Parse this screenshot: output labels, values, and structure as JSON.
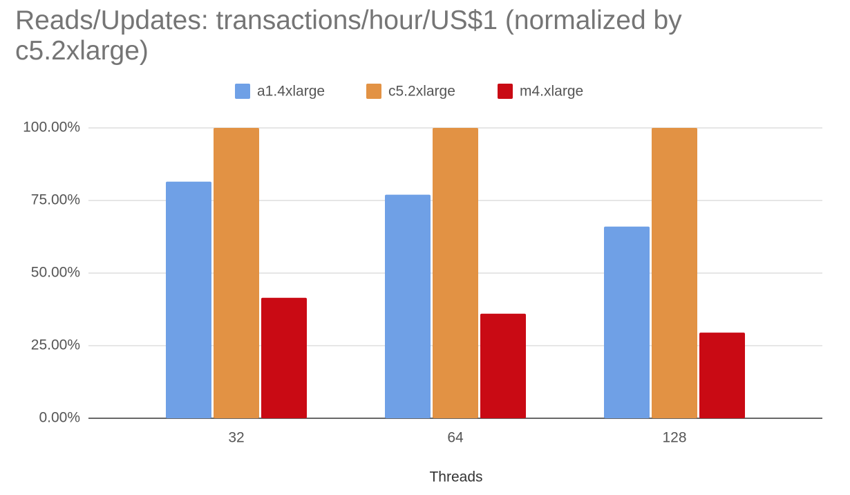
{
  "chart_data": {
    "type": "bar",
    "title": "Reads/Updates: transactions/hour/US$1 (normalized by c5.2xlarge)",
    "x_label": "Threads",
    "categories": [
      "32",
      "64",
      "128"
    ],
    "series": [
      {
        "name": "a1.4xlarge",
        "color": "#6fa0e6",
        "values": [
          81.5,
          77,
          66
        ]
      },
      {
        "name": "c5.2xlarge",
        "color": "#e29244",
        "values": [
          100,
          100,
          100
        ]
      },
      {
        "name": "m4.xlarge",
        "color": "#c90a14",
        "values": [
          41.5,
          36,
          29.5
        ]
      }
    ],
    "ylim": [
      0,
      100
    ],
    "yticks": [
      {
        "value": 0,
        "label": "0.00%"
      },
      {
        "value": 25,
        "label": "25.00%"
      },
      {
        "value": 50,
        "label": "50.00%"
      },
      {
        "value": 75,
        "label": "75.00%"
      },
      {
        "value": 100,
        "label": "100.00%"
      }
    ],
    "grid": true,
    "legend": "top"
  }
}
